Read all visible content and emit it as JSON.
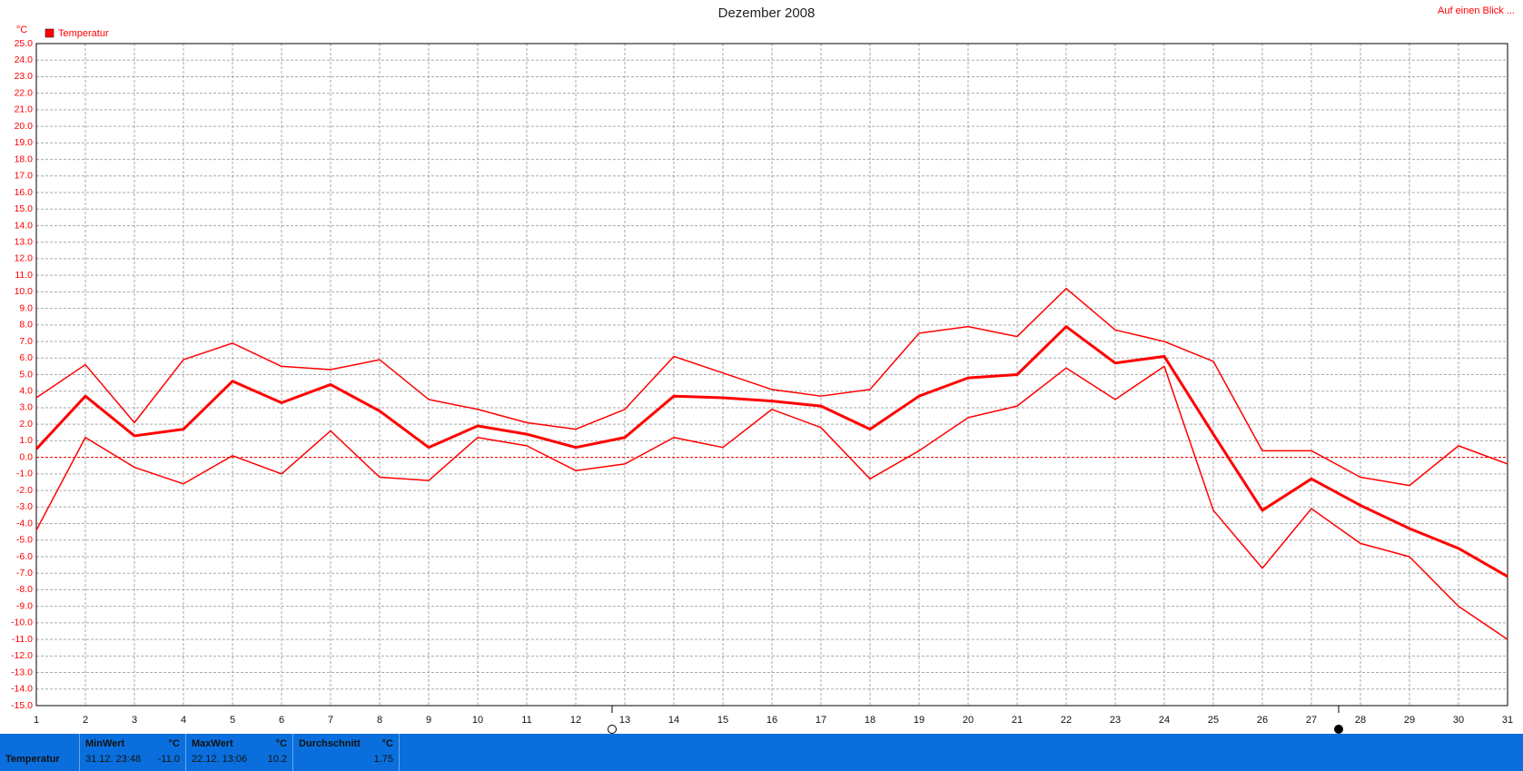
{
  "chart_data": {
    "type": "line",
    "title": "Dezember 2008",
    "y_unit": "°C",
    "legend": {
      "label": "Temperatur",
      "color": "#ff0000",
      "position": "top-left"
    },
    "x": [
      1,
      2,
      3,
      4,
      5,
      6,
      7,
      8,
      9,
      10,
      11,
      12,
      13,
      14,
      15,
      16,
      17,
      18,
      19,
      20,
      21,
      22,
      23,
      24,
      25,
      26,
      27,
      28,
      29,
      30,
      31
    ],
    "xlim": [
      1,
      31
    ],
    "ylim": [
      -15,
      25
    ],
    "yticks": [
      {
        "value": 25,
        "label": "25.0"
      },
      {
        "value": 24,
        "label": "24.0"
      },
      {
        "value": 23,
        "label": "23.0"
      },
      {
        "value": 22,
        "label": "22.0"
      },
      {
        "value": 21,
        "label": "21.0"
      },
      {
        "value": 20,
        "label": "20.0"
      },
      {
        "value": 19,
        "label": "19.0"
      },
      {
        "value": 18,
        "label": "18.0"
      },
      {
        "value": 17,
        "label": "17.0"
      },
      {
        "value": 16,
        "label": "16.0"
      },
      {
        "value": 15,
        "label": "15.0"
      },
      {
        "value": 14,
        "label": "14.0"
      },
      {
        "value": 13,
        "label": "13.0"
      },
      {
        "value": 12,
        "label": "12.0"
      },
      {
        "value": 11,
        "label": "11.0"
      },
      {
        "value": 10,
        "label": "10.0"
      },
      {
        "value": 9,
        "label": "9.0"
      },
      {
        "value": 8,
        "label": "8.0"
      },
      {
        "value": 7,
        "label": "7.0"
      },
      {
        "value": 6,
        "label": "6.0"
      },
      {
        "value": 5,
        "label": "5.0"
      },
      {
        "value": 4,
        "label": "4.0"
      },
      {
        "value": 3,
        "label": "3.0"
      },
      {
        "value": 2,
        "label": "2.0"
      },
      {
        "value": 1,
        "label": "1.0"
      },
      {
        "value": 0,
        "label": "0.0"
      },
      {
        "value": -1,
        "label": "-1.0"
      },
      {
        "value": -2,
        "label": "-2.0"
      },
      {
        "value": -3,
        "label": "-3.0"
      },
      {
        "value": -4,
        "label": "-4.0"
      },
      {
        "value": -5,
        "label": "-5.0"
      },
      {
        "value": -6,
        "label": "-6.0"
      },
      {
        "value": -7,
        "label": "-7.0"
      },
      {
        "value": -8,
        "label": "-8.0"
      },
      {
        "value": -9,
        "label": "-9.0"
      },
      {
        "value": -10,
        "label": "-10.0"
      },
      {
        "value": -11,
        "label": "-11.0"
      },
      {
        "value": -12,
        "label": "-12.0"
      },
      {
        "value": -13,
        "label": "-13.0"
      },
      {
        "value": -14,
        "label": "-14.0"
      },
      {
        "value": -15,
        "label": "-15.0"
      }
    ],
    "grid": true,
    "zero_line": true,
    "series": [
      {
        "color": "#ff0000",
        "width": 1.5,
        "values": [
          3.6,
          5.6,
          2.1,
          5.9,
          6.9,
          5.5,
          5.3,
          5.9,
          3.5,
          2.9,
          2.1,
          1.7,
          2.9,
          6.1,
          5.1,
          4.1,
          3.7,
          4.1,
          7.5,
          7.9,
          7.3,
          10.2,
          7.7,
          7.0,
          5.8,
          0.4,
          0.4,
          -1.2,
          -1.7,
          0.7,
          -0.4
        ]
      },
      {
        "color": "#ff0000",
        "width": 3,
        "values": [
          0.5,
          3.7,
          1.3,
          1.7,
          4.6,
          3.3,
          4.4,
          2.8,
          0.6,
          1.9,
          1.4,
          0.6,
          1.2,
          3.7,
          3.6,
          3.4,
          3.1,
          1.7,
          3.7,
          4.8,
          5.0,
          7.9,
          5.7,
          6.1,
          1.4,
          -3.2,
          -1.3,
          -2.9,
          -4.3,
          -5.5,
          -7.2
        ]
      },
      {
        "color": "#ff0000",
        "width": 1.5,
        "values": [
          -4.4,
          1.2,
          -0.6,
          -1.6,
          0.1,
          -1.0,
          1.6,
          -1.2,
          -1.4,
          1.2,
          0.7,
          -0.8,
          -0.4,
          1.2,
          0.6,
          2.9,
          1.8,
          -1.3,
          0.4,
          2.4,
          3.1,
          5.4,
          3.5,
          5.5,
          -3.2,
          -6.7,
          -3.1,
          -5.2,
          -6.0,
          -9.0,
          -11.0
        ]
      }
    ]
  },
  "link": "Auf einen Blick ...",
  "summary": {
    "row_label": "Temperatur",
    "cells": [
      {
        "title": "MinWert",
        "unit": "°C",
        "time": "31.12.  23:48",
        "value": "-11.0"
      },
      {
        "title": "MaxWert",
        "unit": "°C",
        "time": "22.12.  13:06",
        "value": "10.2"
      },
      {
        "title": "Durchschnitt",
        "unit": "°C",
        "value": "1.75"
      }
    ]
  }
}
